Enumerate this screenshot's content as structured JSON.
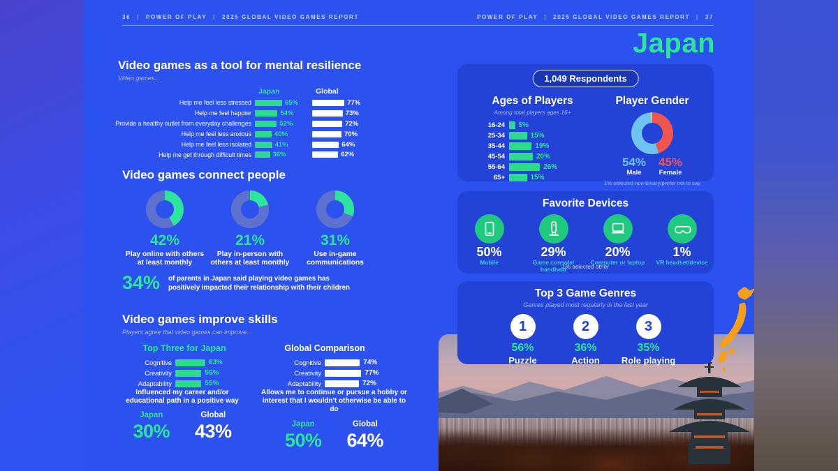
{
  "page": {
    "divider": "|",
    "header_left": {
      "page_no": "36",
      "brand": "POWER OF PLAY",
      "report": "2025 GLOBAL VIDEO GAMES REPORT"
    },
    "header_right": {
      "brand": "POWER OF PLAY",
      "report": "2025 GLOBAL VIDEO GAMES REPORT",
      "page_no": "37"
    },
    "country_title": "Japan"
  },
  "colors": {
    "accent_green": "#2ee39b",
    "donut_ring": "#5f71cf",
    "male_blue": "#6fc3f0",
    "female_red": "#f2544e",
    "nonbinary_yellow": "#ffd34d",
    "device_green": "#1fc97e",
    "device_label_cyan": "#3fc9e8",
    "map_orange": "#f59f1d",
    "slide_blue": "#2b52ee",
    "card_blue": "#2342d6"
  },
  "resilience": {
    "title": "Video games as a tool for mental resilience",
    "subtitle": "Video games...",
    "japan_header": "Japan",
    "global_header": "Global",
    "rows": [
      {
        "label": "Help me feel less stressed",
        "japan": 65,
        "japan_pct": "65%",
        "global": 77,
        "global_pct": "77%"
      },
      {
        "label": "Help me feel happier",
        "japan": 54,
        "japan_pct": "54%",
        "global": 73,
        "global_pct": "73%"
      },
      {
        "label": "Provide a healthy outlet from everyday challenges",
        "japan": 52,
        "japan_pct": "52%",
        "global": 72,
        "global_pct": "72%"
      },
      {
        "label": "Help me feel less anxious",
        "japan": 40,
        "japan_pct": "40%",
        "global": 70,
        "global_pct": "70%"
      },
      {
        "label": "Help me feel less isolated",
        "japan": 41,
        "japan_pct": "41%",
        "global": 64,
        "global_pct": "64%"
      },
      {
        "label": "Help me get through difficult times",
        "japan": 36,
        "japan_pct": "36%",
        "global": 62,
        "global_pct": "62%"
      }
    ]
  },
  "connect": {
    "title": "Video games connect people",
    "donuts": [
      {
        "value": 42,
        "pct": "42%",
        "label": "Play online with others at least monthly"
      },
      {
        "value": 21,
        "pct": "21%",
        "label": "Play in-person with others at least monthly"
      },
      {
        "value": 31,
        "pct": "31%",
        "label": "Use in-game communications"
      }
    ]
  },
  "parents": {
    "pct": "34%",
    "text": "of parents in Japan said playing video games has positively impacted their relationship with their children"
  },
  "skills": {
    "title": "Video games improve skills",
    "subtitle": "Players agree that video games can improve...",
    "japan_header": "Top Three for Japan",
    "global_header": "Global Comparison",
    "japan_rows": [
      {
        "label": "Cognitive",
        "value": 63,
        "pct": "63%"
      },
      {
        "label": "Creativity",
        "value": 55,
        "pct": "55%"
      },
      {
        "label": "Adaptability",
        "value": 55,
        "pct": "55%"
      }
    ],
    "global_rows": [
      {
        "label": "Cognitive",
        "value": 74,
        "pct": "74%"
      },
      {
        "label": "Creativity",
        "value": 77,
        "pct": "77%"
      },
      {
        "label": "Adaptability",
        "value": 72,
        "pct": "72%"
      }
    ]
  },
  "stats": [
    {
      "statement": "Influenced my career and/or educational path in a positive way",
      "japan_label": "Japan",
      "global_label": "Global",
      "japan_pct": "30%",
      "global_pct": "43%"
    },
    {
      "statement": "Allows me to continue or pursue a hobby or interest that I wouldn't otherwise be able to do",
      "japan_label": "Japan",
      "global_label": "Global",
      "japan_pct": "50%",
      "global_pct": "64%"
    }
  ],
  "respondents": {
    "badge": "1,049 Respondents",
    "ages": {
      "title": "Ages of Players",
      "subtitle": "Among total players ages 16+",
      "rows": [
        {
          "label": "16-24",
          "value": 5,
          "pct": "5%"
        },
        {
          "label": "25-34",
          "value": 15,
          "pct": "15%"
        },
        {
          "label": "35-44",
          "value": 19,
          "pct": "19%"
        },
        {
          "label": "45-54",
          "value": 20,
          "pct": "20%"
        },
        {
          "label": "55-64",
          "value": 26,
          "pct": "26%"
        },
        {
          "label": "65+",
          "value": 15,
          "pct": "15%"
        }
      ]
    },
    "gender": {
      "title": "Player Gender",
      "male_value": 54,
      "male_pct": "54%",
      "male_label": "Male",
      "female_value": 45,
      "female_pct": "45%",
      "female_label": "Female",
      "nonbinary_value": 1,
      "footnote": "1% selected non-binary/prefer not to say"
    }
  },
  "devices": {
    "title": "Favorite Devices",
    "footnote": "1% selected other",
    "items": [
      {
        "icon": "mobile-icon",
        "pct": "50%",
        "value": 50,
        "label": "Mobile"
      },
      {
        "icon": "game-console-icon",
        "pct": "29%",
        "value": 29,
        "label": "Game console/ handheld"
      },
      {
        "icon": "laptop-icon",
        "pct": "20%",
        "value": 20,
        "label": "Computer or laptop"
      },
      {
        "icon": "vr-headset-icon",
        "pct": "1%",
        "value": 1,
        "label": "VR headset/device"
      }
    ]
  },
  "genres": {
    "title": "Top 3 Game Genres",
    "subtitle": "Genres played most regularly in the last year",
    "items": [
      {
        "rank": "1",
        "pct": "56%",
        "value": 56,
        "label": "Puzzle"
      },
      {
        "rank": "2",
        "pct": "36%",
        "value": 36,
        "label": "Action"
      },
      {
        "rank": "3",
        "pct": "35%",
        "value": 35,
        "label": "Role playing"
      }
    ]
  },
  "chart_data": [
    {
      "type": "bar",
      "title": "Video games as a tool for mental resilience",
      "categories": [
        "Help me feel less stressed",
        "Help me feel happier",
        "Provide a healthy outlet from everyday challenges",
        "Help me feel less anxious",
        "Help me feel less isolated",
        "Help me get through difficult times"
      ],
      "series": [
        {
          "name": "Japan",
          "values": [
            65,
            54,
            52,
            40,
            41,
            36
          ]
        },
        {
          "name": "Global",
          "values": [
            77,
            73,
            72,
            70,
            64,
            62
          ]
        }
      ],
      "unit": "%"
    },
    {
      "type": "pie",
      "title": "Video games connect people (three donuts)",
      "slices": [
        {
          "label": "Play online with others at least monthly",
          "value": 42
        },
        {
          "label": "Play in-person with others at least monthly",
          "value": 21
        },
        {
          "label": "Use in-game communications",
          "value": 31
        }
      ]
    },
    {
      "type": "bar",
      "title": "Video games improve skills - Top Three for Japan",
      "categories": [
        "Cognitive",
        "Creativity",
        "Adaptability"
      ],
      "values": [
        63,
        55,
        55
      ],
      "unit": "%"
    },
    {
      "type": "bar",
      "title": "Video games improve skills - Global Comparison",
      "categories": [
        "Cognitive",
        "Creativity",
        "Adaptability"
      ],
      "values": [
        74,
        77,
        72
      ],
      "unit": "%"
    },
    {
      "type": "bar",
      "title": "Ages of Players (among total players ages 16+)",
      "categories": [
        "16-24",
        "25-34",
        "35-44",
        "45-54",
        "55-64",
        "65+"
      ],
      "values": [
        5,
        15,
        19,
        20,
        26,
        15
      ],
      "unit": "%"
    },
    {
      "type": "pie",
      "title": "Player Gender",
      "slices": [
        {
          "label": "Male",
          "value": 54
        },
        {
          "label": "Female",
          "value": 45
        },
        {
          "label": "Non-binary/prefer not to say",
          "value": 1
        }
      ]
    },
    {
      "type": "bar",
      "title": "Favorite Devices",
      "categories": [
        "Mobile",
        "Game console/handheld",
        "Computer or laptop",
        "VR headset/device"
      ],
      "values": [
        50,
        29,
        20,
        1
      ],
      "unit": "%"
    },
    {
      "type": "bar",
      "title": "Top 3 Game Genres",
      "categories": [
        "Puzzle",
        "Action",
        "Role playing"
      ],
      "values": [
        56,
        36,
        35
      ],
      "unit": "%"
    },
    {
      "type": "table",
      "title": "Japan vs Global statements",
      "rows": [
        [
          "Influenced my career and/or educational path in a positive way",
          "Japan 30%",
          "Global 43%"
        ],
        [
          "Allows me to continue or pursue a hobby or interest that I wouldn't otherwise be able to do",
          "Japan 50%",
          "Global 64%"
        ],
        [
          "Parents who said playing video games positively impacted their relationship with their children",
          "34%",
          ""
        ]
      ]
    }
  ]
}
